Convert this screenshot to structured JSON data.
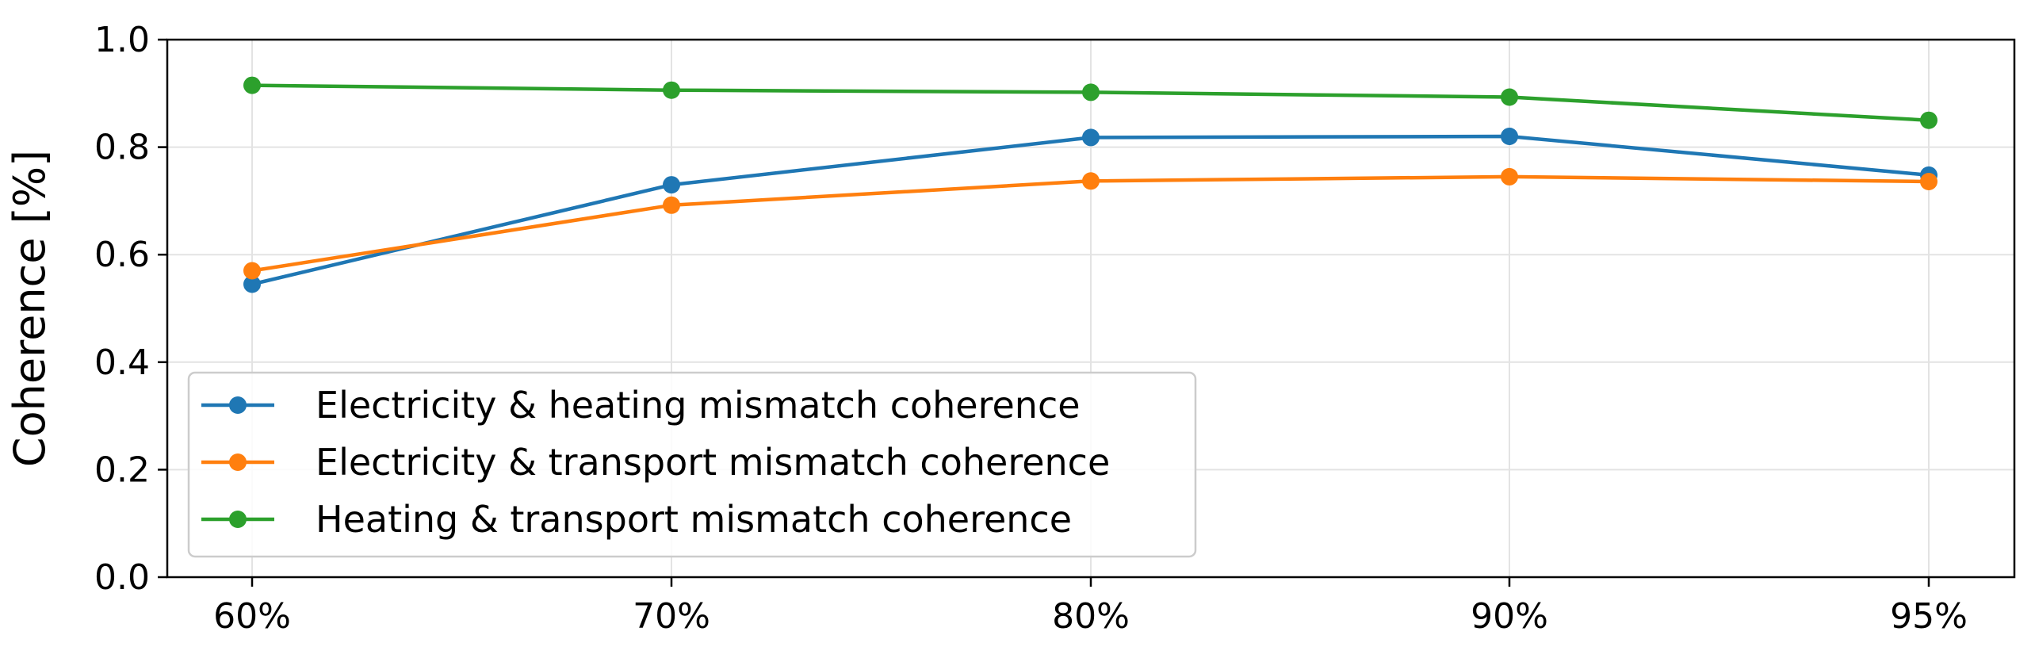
{
  "chart_data": {
    "type": "line",
    "categories": [
      "60%",
      "70%",
      "80%",
      "90%",
      "95%"
    ],
    "xlabel": "",
    "ylabel": "Coherence [%]",
    "ylim": [
      0.0,
      1.0
    ],
    "yticks": [
      "0.0",
      "0.2",
      "0.4",
      "0.6",
      "0.8",
      "1.0"
    ],
    "grid": true,
    "legend_position": "lower-left",
    "series": [
      {
        "name": "Electricity & heating mismatch coherence",
        "color": "#1f77b4",
        "values": [
          0.545,
          0.73,
          0.818,
          0.82,
          0.748
        ]
      },
      {
        "name": "Electricity & transport mismatch coherence",
        "color": "#ff7f0e",
        "values": [
          0.57,
          0.692,
          0.737,
          0.745,
          0.736
        ]
      },
      {
        "name": "Heating & transport mismatch coherence",
        "color": "#2ca02c",
        "values": [
          0.915,
          0.906,
          0.902,
          0.893,
          0.85
        ]
      }
    ]
  }
}
